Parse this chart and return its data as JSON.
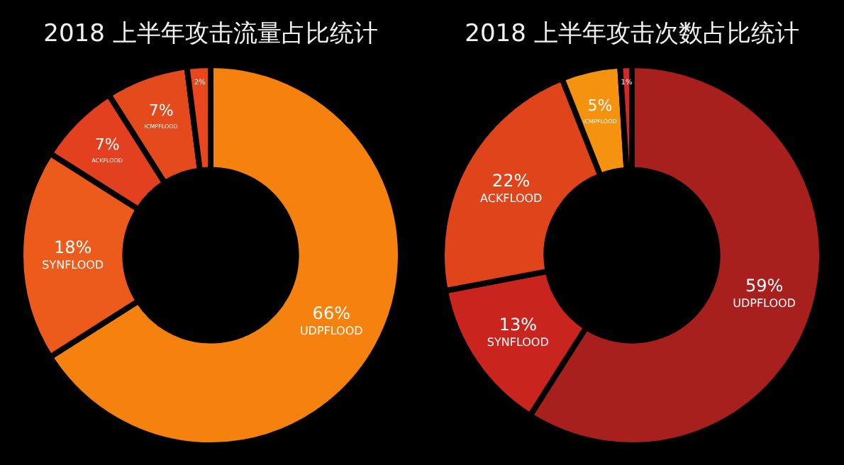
{
  "chart_data": [
    {
      "type": "donut",
      "title": "2018 上半年攻击流量占比统计",
      "categories": [
        "UDPFLOOD",
        "SYNFLOOD",
        "ACKFLOOD",
        "ICMPFLOOD",
        null
      ],
      "values": [
        66,
        18,
        7,
        7,
        2
      ],
      "value_labels": [
        "66%",
        "18%",
        "7%",
        "7%",
        "2%"
      ],
      "colors": [
        "#f5820f",
        "#ec5a1c",
        "#e2401e",
        "#e54a1d",
        "#e9461c"
      ]
    },
    {
      "type": "donut",
      "title": "2018 上半年攻击次数占比统计",
      "categories": [
        "UDPFLOOD",
        "SYNFLOOD",
        "ACKFLOOD",
        "ICMPFLOOD",
        null
      ],
      "values": [
        59,
        13,
        22,
        5,
        1
      ],
      "value_labels": [
        "59%",
        "13%",
        "22%",
        "5%",
        "1%"
      ],
      "colors": [
        "#a8201e",
        "#c9251e",
        "#e0441b",
        "#f5920f",
        "#d8252a"
      ]
    }
  ]
}
